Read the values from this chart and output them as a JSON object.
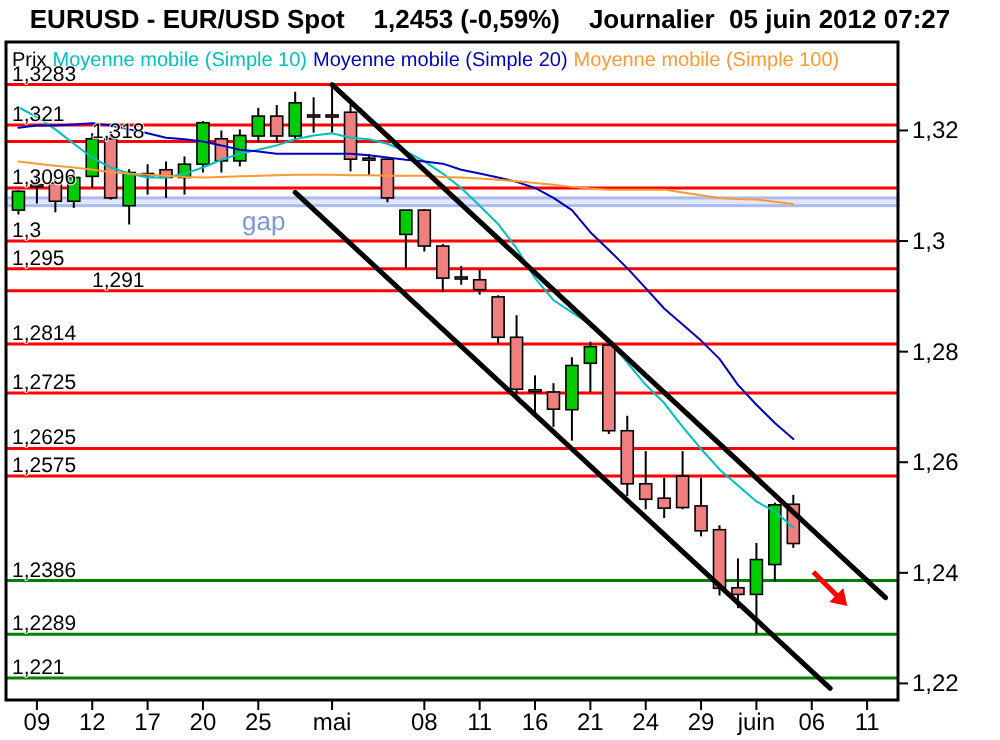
{
  "chart_data": {
    "type": "candlestick",
    "title": "EURUSD - EUR/USD Spot    1,2453 (-0,59%)    Journalier  05 juin 2012 07:27",
    "categories": [
      null,
      "09",
      null,
      null,
      "12",
      null,
      null,
      "17",
      null,
      null,
      "20",
      null,
      null,
      "25",
      null,
      null,
      null,
      "mai",
      null,
      null,
      null,
      null,
      "08",
      null,
      null,
      "11",
      null,
      null,
      "16",
      null,
      null,
      "21",
      null,
      null,
      "24",
      null,
      null,
      "29",
      null,
      null,
      "juin",
      null,
      null,
      "06",
      null,
      null,
      "11",
      null
    ],
    "ylim": [
      1.217,
      1.336
    ],
    "yticks": [
      {
        "value": 1.22,
        "label": "1,22"
      },
      {
        "value": 1.24,
        "label": "1,24"
      },
      {
        "value": 1.26,
        "label": "1,26"
      },
      {
        "value": 1.28,
        "label": "1,28"
      },
      {
        "value": 1.3,
        "label": "1,3"
      },
      {
        "value": 1.32,
        "label": "1,32"
      }
    ],
    "legend": "top left",
    "series": [
      {
        "name": "Prix",
        "ohlc": [
          [
            1.3056,
            1.3092,
            1.3048,
            1.309
          ],
          [
            1.3102,
            1.3122,
            1.3068,
            1.31
          ],
          [
            1.3105,
            1.3112,
            1.3052,
            1.3072
          ],
          [
            1.3072,
            1.3125,
            1.306,
            1.3115
          ],
          [
            1.3117,
            1.3195,
            1.3096,
            1.3185
          ],
          [
            1.3185,
            1.3198,
            1.3075,
            1.3078
          ],
          [
            1.3064,
            1.313,
            1.303,
            1.3124
          ],
          [
            1.3122,
            1.3139,
            1.3084,
            1.312
          ],
          [
            1.3129,
            1.3144,
            1.3078,
            1.3115
          ],
          [
            1.3115,
            1.3153,
            1.3084,
            1.3139
          ],
          [
            1.3139,
            1.3217,
            1.3124,
            1.3214
          ],
          [
            1.3185,
            1.32,
            1.3124,
            1.3145
          ],
          [
            1.3145,
            1.3202,
            1.3135,
            1.3191
          ],
          [
            1.319,
            1.3241,
            1.3179,
            1.3226
          ],
          [
            1.3226,
            1.3246,
            1.3178,
            1.319
          ],
          [
            1.319,
            1.327,
            1.3182,
            1.325
          ],
          [
            1.3228,
            1.326,
            1.3196,
            1.3226
          ],
          [
            1.3228,
            1.3283,
            1.3196,
            1.3226
          ],
          [
            1.3233,
            1.3247,
            1.3126,
            1.3148
          ],
          [
            1.315,
            1.3157,
            1.3118,
            1.3148
          ],
          [
            1.3148,
            1.3151,
            1.307,
            1.3078
          ],
          [
            1.3012,
            1.3056,
            1.2951,
            1.3056
          ],
          [
            1.3056,
            1.3058,
            1.2981,
            1.2991
          ],
          [
            1.2991,
            1.2995,
            1.2908,
            1.2933
          ],
          [
            1.2935,
            1.2955,
            1.2921,
            1.2933
          ],
          [
            1.293,
            1.2949,
            1.2903,
            1.2912
          ],
          [
            1.2899,
            1.2902,
            1.2815,
            1.2826
          ],
          [
            1.2826,
            1.2866,
            1.2724,
            1.2732
          ],
          [
            1.2731,
            1.2757,
            1.2684,
            1.2729
          ],
          [
            1.2727,
            1.2743,
            1.2664,
            1.2696
          ],
          [
            1.2695,
            1.279,
            1.2639,
            1.2775
          ],
          [
            1.2779,
            1.2818,
            1.2727,
            1.2809
          ],
          [
            1.2812,
            1.2818,
            1.2651,
            1.2657
          ],
          [
            1.2657,
            1.2684,
            1.2539,
            1.2561
          ],
          [
            1.2561,
            1.262,
            1.2515,
            1.2533
          ],
          [
            1.2535,
            1.2572,
            1.2499,
            1.2517
          ],
          [
            1.2575,
            1.262,
            1.2515,
            1.2518
          ],
          [
            1.2521,
            1.2572,
            1.2466,
            1.2476
          ],
          [
            1.2478,
            1.2486,
            1.2359,
            1.2372
          ],
          [
            1.2373,
            1.2426,
            1.2336,
            1.2361
          ],
          [
            1.2361,
            1.2454,
            1.229,
            1.2424
          ],
          [
            1.2415,
            1.2527,
            1.2385,
            1.2523
          ],
          [
            1.2524,
            1.2541,
            1.2445,
            1.2453
          ],
          null,
          null,
          null,
          null,
          null
        ],
        "colors": [
          "#00cc00",
          "#f08080",
          "#f08080",
          "#00cc00",
          "#00cc00",
          "#f08080",
          "#00cc00",
          "#f08080",
          "#f08080",
          "#00cc00",
          "#00cc00",
          "#f08080",
          "#00cc00",
          "#00cc00",
          "#f08080",
          "#00cc00",
          "#f08080",
          "#f08080",
          "#f08080",
          "#f08080",
          "#f08080",
          "#00cc00",
          "#f08080",
          "#f08080",
          "#f08080",
          "#f08080",
          "#f08080",
          "#f08080",
          "#f08080",
          "#f08080",
          "#00cc00",
          "#00cc00",
          "#f08080",
          "#f08080",
          "#f08080",
          "#f08080",
          "#f08080",
          "#f08080",
          "#f08080",
          "#f08080",
          "#00cc00",
          "#00cc00",
          "#f08080",
          null,
          null,
          null,
          null,
          null
        ]
      },
      {
        "name": "Moyenne mobile (Simple 10)",
        "type": "line",
        "color": "#00c0c0",
        "values": [
          1.3242,
          1.3224,
          1.3202,
          1.3176,
          1.3151,
          1.3133,
          1.3122,
          1.3115,
          1.3115,
          1.3122,
          1.3133,
          1.3147,
          1.3158,
          1.3165,
          1.3173,
          1.3184,
          1.3191,
          1.3195,
          1.3187,
          1.3184,
          1.3176,
          1.3162,
          1.3144,
          1.3122,
          1.3096,
          1.3064,
          1.3031,
          1.2987,
          1.2933,
          1.2893,
          1.2871,
          1.2849,
          1.282,
          1.278,
          1.274,
          1.2707,
          1.2664,
          1.2624,
          1.2587,
          1.2558,
          1.2529,
          1.2511,
          1.2482,
          null,
          null,
          null,
          null,
          null
        ]
      },
      {
        "name": "Moyenne mobile (Simple 20)",
        "type": "line",
        "color": "#0000c0",
        "values": [
          1.3205,
          1.3209,
          1.3209,
          1.3211,
          1.3213,
          1.3209,
          1.3202,
          1.3195,
          1.3187,
          1.3184,
          1.318,
          1.3173,
          1.3165,
          1.3162,
          1.3158,
          1.3158,
          1.3158,
          1.3158,
          1.3158,
          1.3155,
          1.3151,
          1.3147,
          1.3144,
          1.314,
          1.3129,
          1.3122,
          1.3115,
          1.3107,
          1.3096,
          1.3078,
          1.3056,
          1.3016,
          1.2984,
          1.2951,
          1.2915,
          1.2878,
          1.2849,
          1.282,
          1.2787,
          1.274,
          1.2704,
          1.2671,
          1.2642,
          null,
          null,
          null,
          null,
          null
        ]
      },
      {
        "name": "Moyenne mobile (Simple 100)",
        "type": "line",
        "color": "#ff9933",
        "values": [
          1.3144,
          1.314,
          1.3136,
          1.3133,
          1.3129,
          1.3125,
          1.3122,
          1.312,
          1.3118,
          1.3116,
          1.3115,
          1.3116,
          1.3117,
          1.3118,
          1.3119,
          1.312,
          1.312,
          1.312,
          1.3119,
          1.3119,
          1.3118,
          1.3118,
          1.3118,
          1.3116,
          1.3115,
          1.3113,
          1.3111,
          1.3108,
          1.3105,
          1.3102,
          1.3098,
          1.3095,
          1.3093,
          1.3093,
          1.3093,
          1.3093,
          1.3088,
          1.3083,
          1.3078,
          1.3076,
          1.3075,
          1.3071,
          1.3067,
          null,
          null,
          null,
          null,
          null
        ]
      },
      {
        "type": "line",
        "color": "#000000",
        "values": [
          null,
          null,
          null,
          null,
          null,
          null,
          null,
          null,
          null,
          null,
          null,
          null,
          null,
          null,
          null,
          null,
          null,
          1.3283,
          null,
          null,
          null,
          null,
          null,
          null,
          null,
          null,
          null,
          null,
          null,
          null,
          null,
          null,
          null,
          null,
          null,
          null,
          null,
          null,
          null,
          null,
          null,
          null,
          null,
          null,
          null,
          null,
          null,
          1.2355
        ]
      },
      {
        "type": "line",
        "color": "#000000",
        "values": [
          null,
          null,
          null,
          null,
          null,
          null,
          null,
          null,
          null,
          null,
          null,
          null,
          null,
          null,
          null,
          1.3088,
          null,
          null,
          null,
          null,
          null,
          null,
          null,
          null,
          null,
          null,
          null,
          null,
          null,
          null,
          null,
          null,
          null,
          null,
          null,
          null,
          null,
          null,
          null,
          null,
          null,
          null,
          null,
          null,
          1.2191,
          null,
          null,
          null
        ]
      }
    ],
    "ref_lines": [
      {
        "axis": "y",
        "value": 1.3283,
        "label": "1,3283",
        "color": "#ff0000"
      },
      {
        "axis": "y",
        "value": 1.321,
        "label": "1,321",
        "color": "#ff0000"
      },
      {
        "axis": "y",
        "value": 1.318,
        "label": "1,318",
        "color": "#ff0000"
      },
      {
        "axis": "y",
        "value": 1.3096,
        "label": "1,3096",
        "color": "#ff0000"
      },
      {
        "axis": "y",
        "value": 1.3,
        "label": "1,3",
        "color": "#ff0000"
      },
      {
        "axis": "y",
        "value": 1.295,
        "label": "1,295",
        "color": "#ff0000"
      },
      {
        "axis": "y",
        "value": 1.291,
        "label": "1,291",
        "color": "#ff0000"
      },
      {
        "axis": "y",
        "value": 1.2814,
        "label": "1,2814",
        "color": "#ff0000"
      },
      {
        "axis": "y",
        "value": 1.2725,
        "label": "1,2725",
        "color": "#ff0000"
      },
      {
        "axis": "y",
        "value": 1.2625,
        "label": "1,2625",
        "color": "#ff0000"
      },
      {
        "axis": "y",
        "value": 1.2575,
        "label": "1,2575",
        "color": "#ff0000"
      },
      {
        "axis": "y",
        "value": 1.2386,
        "label": "1,2386",
        "color": "#008000"
      },
      {
        "axis": "y",
        "value": 1.2289,
        "label": "1,2289",
        "color": "#008000"
      },
      {
        "axis": "y",
        "value": 1.221,
        "label": "1,221",
        "color": "#008000"
      }
    ],
    "bands": [
      {
        "axis": "y",
        "from": 1.3064,
        "to": 1.3078,
        "label": "gap",
        "color": "#aabbee"
      }
    ]
  }
}
